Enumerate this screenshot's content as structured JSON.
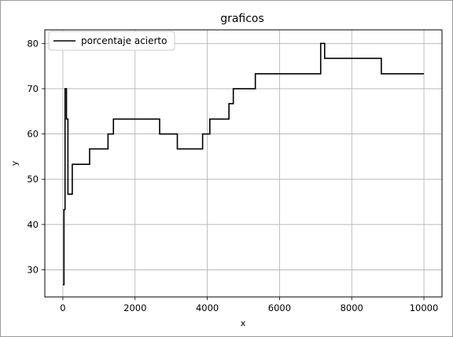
{
  "chart_data": {
    "type": "line",
    "title": "graficos",
    "xlabel": "x",
    "ylabel": "y",
    "xlim": [
      -500,
      10500
    ],
    "ylim": [
      24,
      83
    ],
    "grid": true,
    "legend_position": "top-left",
    "x_ticks": [
      0,
      2000,
      4000,
      6000,
      8000,
      10000
    ],
    "y_ticks": [
      30,
      40,
      50,
      60,
      70,
      80
    ],
    "series": [
      {
        "name": "porcentaje acierto",
        "color": "#000000",
        "step": true,
        "x": [
          0,
          30,
          60,
          100,
          140,
          260,
          740,
          1250,
          1400,
          2680,
          3170,
          3870,
          4070,
          4600,
          4720,
          5330,
          7140,
          7250,
          8820,
          10000
        ],
        "y": [
          26.7,
          43.3,
          70.0,
          63.3,
          46.7,
          53.3,
          56.7,
          60.0,
          63.3,
          60.0,
          56.7,
          60.0,
          63.3,
          66.7,
          70.0,
          73.3,
          80.0,
          76.7,
          73.3,
          73.3
        ]
      }
    ]
  }
}
